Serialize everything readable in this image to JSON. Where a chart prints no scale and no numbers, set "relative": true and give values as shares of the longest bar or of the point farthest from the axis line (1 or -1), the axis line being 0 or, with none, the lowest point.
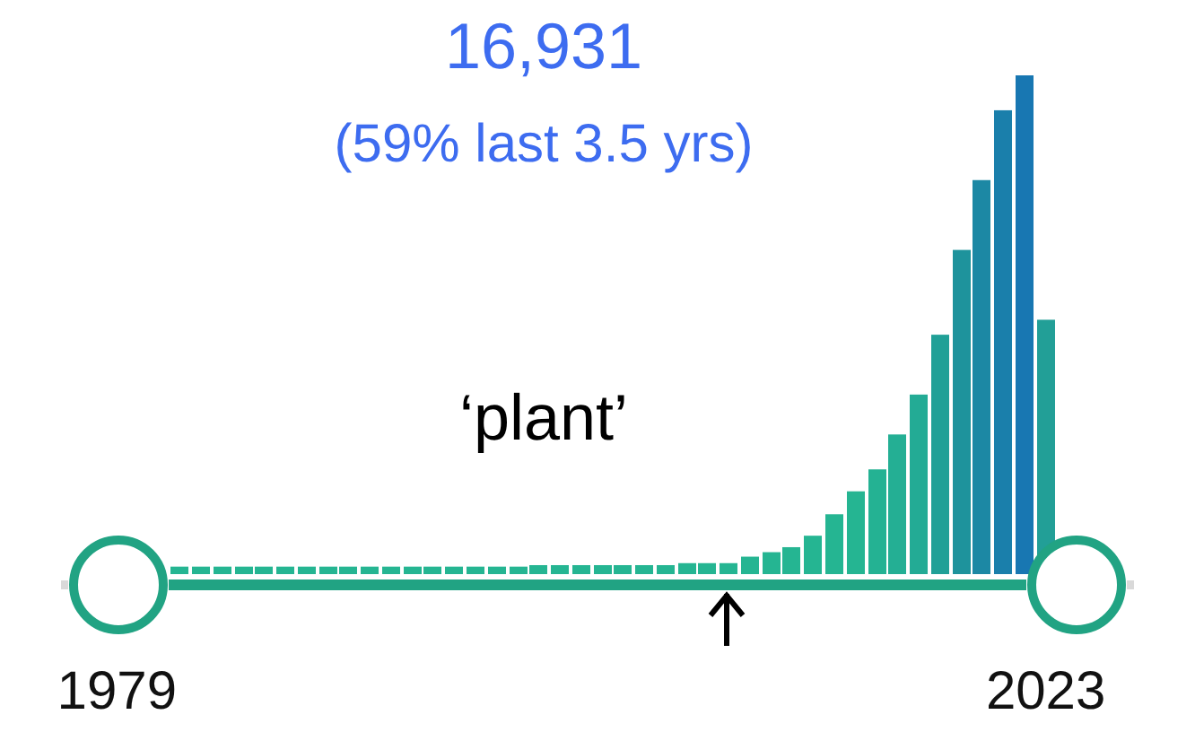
{
  "chart_data": {
    "type": "bar",
    "relative": true,
    "title": "16,931",
    "subtitle": "(59% last 3.5 yrs)",
    "annotations": [
      "‘plant’"
    ],
    "categories": [
      "1979",
      null,
      null,
      null,
      null,
      null,
      null,
      null,
      null,
      null,
      null,
      null,
      null,
      null,
      null,
      null,
      null,
      null,
      null,
      null,
      null,
      null,
      null,
      null,
      null,
      null,
      null,
      null,
      null,
      null,
      null,
      null,
      null,
      null,
      null,
      null,
      null,
      null,
      null,
      null,
      null,
      null,
      null,
      null,
      "2023"
    ],
    "values": [
      null,
      null,
      null,
      0.015,
      0.015,
      0.015,
      0.015,
      0.015,
      0.015,
      0.015,
      0.015,
      0.015,
      0.015,
      0.015,
      0.015,
      0.015,
      0.015,
      0.015,
      0.015,
      0.015,
      0.018,
      0.018,
      0.018,
      0.018,
      0.018,
      0.018,
      0.018,
      0.022,
      0.022,
      0.022,
      0.035,
      0.044,
      0.054,
      0.077,
      0.12,
      0.166,
      0.21,
      0.28,
      0.36,
      0.48,
      0.65,
      0.79,
      0.93,
      1,
      0.51
    ],
    "colors": [
      null,
      null,
      null,
      "#25b592",
      "#25b592",
      "#25b592",
      "#25b592",
      "#25b592",
      "#25b592",
      "#25b592",
      "#25b592",
      "#25b592",
      "#25b592",
      "#25b592",
      "#25b592",
      "#25b592",
      "#25b592",
      "#25b592",
      "#25b592",
      "#25b592",
      "#25b592",
      "#25b592",
      "#25b592",
      "#25b592",
      "#25b592",
      "#25b592",
      "#25b592",
      "#25b592",
      "#25b592",
      "#25b592",
      "#25b592",
      "#25b592",
      "#25b592",
      "#25b592",
      "#25b592",
      "#25b592",
      "#24b293",
      "#24af94",
      "#23ab95",
      "#20a097",
      "#1e939c",
      "#1c88a4",
      "#1a7fab",
      "#1877b2",
      "#229f97"
    ]
  }
}
